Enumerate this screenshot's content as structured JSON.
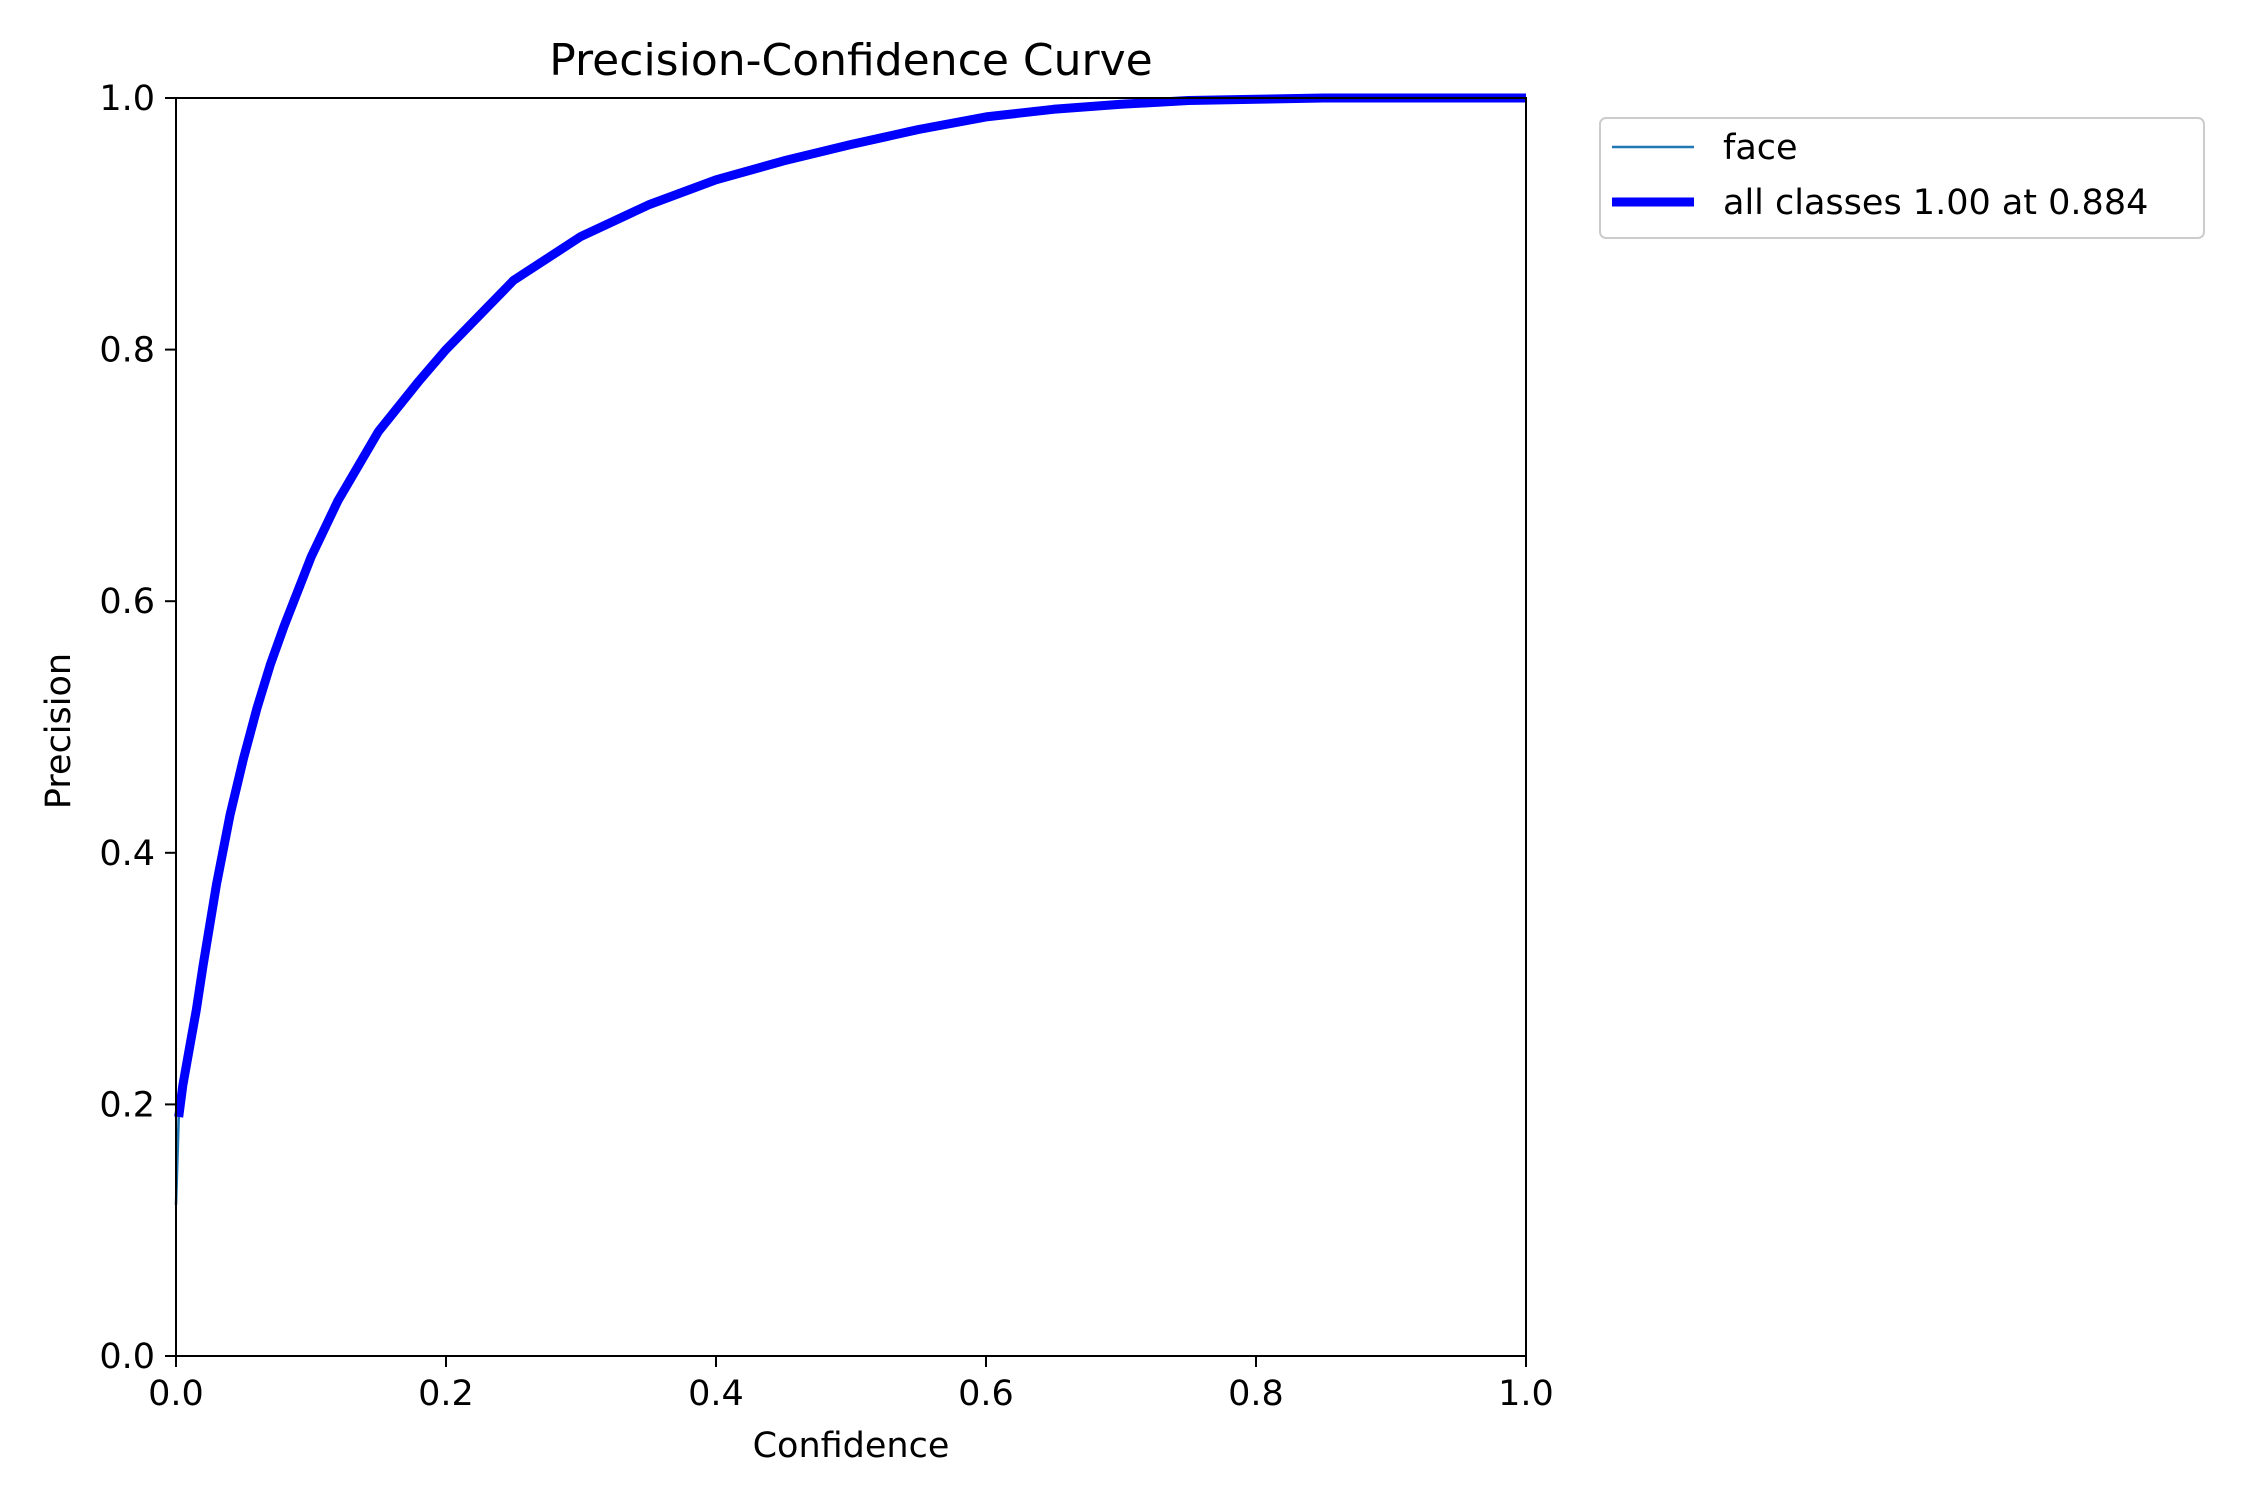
{
  "chart_data": {
    "type": "line",
    "title": "Precision-Confidence Curve",
    "xlabel": "Confidence",
    "ylabel": "Precision",
    "xlim": [
      0.0,
      1.0
    ],
    "ylim": [
      0.0,
      1.0
    ],
    "xticks": [
      "0.0",
      "0.2",
      "0.4",
      "0.6",
      "0.8",
      "1.0"
    ],
    "yticks": [
      "0.0",
      "0.2",
      "0.4",
      "0.6",
      "0.8",
      "1.0"
    ],
    "grid": false,
    "legend_position": "outside top-right",
    "series": [
      {
        "name": "face",
        "color": "#1f77b4",
        "style": "thin",
        "x": [
          0.0,
          0.002,
          0.005,
          0.01,
          0.015,
          0.02,
          0.03,
          0.04,
          0.05,
          0.06,
          0.07,
          0.08,
          0.1,
          0.12,
          0.15,
          0.18,
          0.2,
          0.25,
          0.3,
          0.35,
          0.4,
          0.45,
          0.5,
          0.55,
          0.6,
          0.65,
          0.7,
          0.75,
          0.8,
          0.85,
          0.9,
          0.95,
          1.0
        ],
        "y": [
          0.12,
          0.19,
          0.215,
          0.245,
          0.275,
          0.31,
          0.375,
          0.43,
          0.475,
          0.515,
          0.55,
          0.58,
          0.635,
          0.68,
          0.735,
          0.775,
          0.8,
          0.855,
          0.89,
          0.915,
          0.935,
          0.95,
          0.963,
          0.975,
          0.985,
          0.991,
          0.995,
          0.998,
          0.999,
          1.0,
          1.0,
          1.0,
          1.0
        ]
      },
      {
        "name": "all classes 1.00 at 0.884",
        "color": "#0000ff",
        "style": "thick",
        "x": [
          0.002,
          0.005,
          0.01,
          0.015,
          0.02,
          0.03,
          0.04,
          0.05,
          0.06,
          0.07,
          0.08,
          0.1,
          0.12,
          0.15,
          0.18,
          0.2,
          0.25,
          0.3,
          0.35,
          0.4,
          0.45,
          0.5,
          0.55,
          0.6,
          0.65,
          0.7,
          0.75,
          0.8,
          0.85,
          0.9,
          0.95,
          1.0
        ],
        "y": [
          0.19,
          0.215,
          0.245,
          0.275,
          0.31,
          0.375,
          0.43,
          0.475,
          0.515,
          0.55,
          0.58,
          0.635,
          0.68,
          0.735,
          0.775,
          0.8,
          0.855,
          0.89,
          0.915,
          0.935,
          0.95,
          0.963,
          0.975,
          0.985,
          0.991,
          0.995,
          0.998,
          0.999,
          1.0,
          1.0,
          1.0,
          1.0
        ]
      }
    ]
  }
}
